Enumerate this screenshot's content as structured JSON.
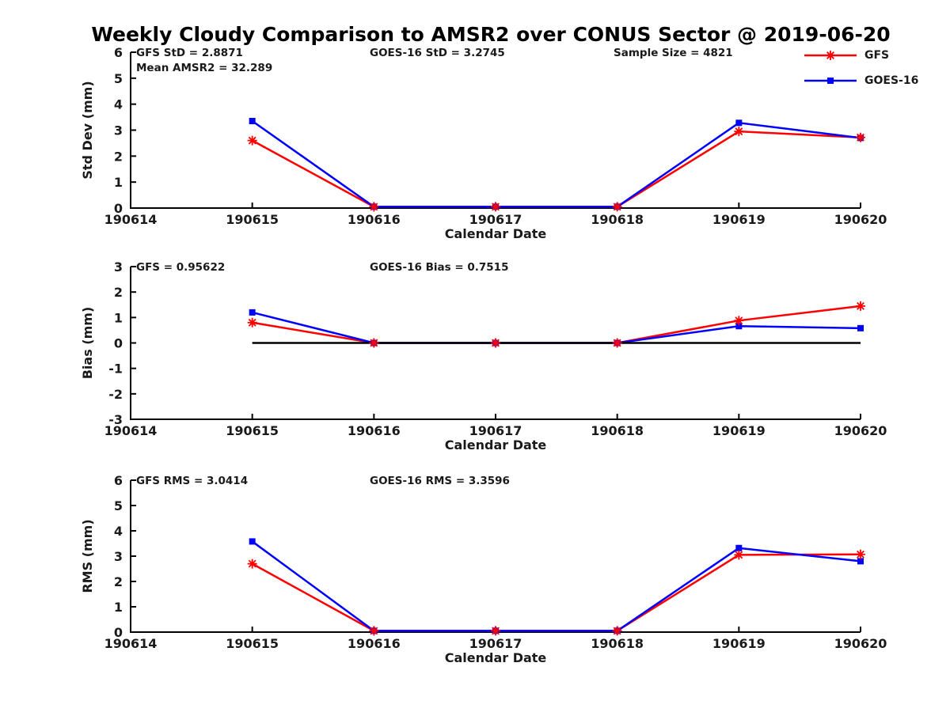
{
  "title": "Weekly Cloudy Comparison to AMSR2 over CONUS Sector @ 2019-06-20",
  "legend": {
    "items": [
      {
        "label": "GFS",
        "color": "#ff0000",
        "marker": "asterisk"
      },
      {
        "label": "GOES-16",
        "color": "#0000ff",
        "marker": "square"
      }
    ]
  },
  "colors": {
    "gfs": "#ff0000",
    "goes16": "#0000ff",
    "axis": "#000000",
    "text": "#1a1a1a",
    "zero_line": "#000000"
  },
  "chart_data": [
    {
      "type": "line",
      "xlabel": "Calendar Date",
      "ylabel": "Std Dev (mm)",
      "ylim": [
        0,
        6
      ],
      "yticks": [
        0,
        1,
        2,
        3,
        4,
        5,
        6
      ],
      "categories": [
        "190614",
        "190615",
        "190616",
        "190617",
        "190618",
        "190619",
        "190620"
      ],
      "x": [
        "190615",
        "190616",
        "190617",
        "190618",
        "190619",
        "190620"
      ],
      "series": [
        {
          "name": "GFS",
          "color": "#ff0000",
          "marker": "asterisk",
          "values": [
            2.6,
            0.05,
            0.05,
            0.05,
            2.95,
            2.72
          ]
        },
        {
          "name": "GOES-16",
          "color": "#0000ff",
          "marker": "square",
          "values": [
            3.35,
            0.05,
            0.05,
            0.05,
            3.28,
            2.7
          ]
        }
      ],
      "zero_line": false,
      "annotations": [
        {
          "text": "GFS StD = 2.8871",
          "col": "left",
          "row": 0
        },
        {
          "text": "Mean AMSR2 = 32.289",
          "col": "left",
          "row": 1
        },
        {
          "text": "GOES-16 StD = 3.2745",
          "col": "center",
          "row": 0
        },
        {
          "text": "Sample Size = 4821",
          "col": "right",
          "row": 0
        }
      ]
    },
    {
      "type": "line",
      "xlabel": "Calendar Date",
      "ylabel": "Bias (mm)",
      "ylim": [
        -3,
        3
      ],
      "yticks": [
        -3,
        -2,
        -1,
        0,
        1,
        2,
        3
      ],
      "categories": [
        "190614",
        "190615",
        "190616",
        "190617",
        "190618",
        "190619",
        "190620"
      ],
      "x": [
        "190615",
        "190616",
        "190617",
        "190618",
        "190619",
        "190620"
      ],
      "series": [
        {
          "name": "GFS",
          "color": "#ff0000",
          "marker": "asterisk",
          "values": [
            0.8,
            0,
            0,
            0,
            0.88,
            1.45
          ]
        },
        {
          "name": "GOES-16",
          "color": "#0000ff",
          "marker": "square",
          "values": [
            1.2,
            0,
            0,
            0,
            0.66,
            0.58
          ]
        }
      ],
      "zero_line": true,
      "annotations": [
        {
          "text": "GFS = 0.95622",
          "col": "left",
          "row": 0
        },
        {
          "text": "GOES-16 Bias  = 0.7515",
          "col": "center",
          "row": 0
        }
      ]
    },
    {
      "type": "line",
      "xlabel": "Calendar Date",
      "ylabel": "RMS (mm)",
      "ylim": [
        0,
        6
      ],
      "yticks": [
        0,
        1,
        2,
        3,
        4,
        5,
        6
      ],
      "categories": [
        "190614",
        "190615",
        "190616",
        "190617",
        "190618",
        "190619",
        "190620"
      ],
      "x": [
        "190615",
        "190616",
        "190617",
        "190618",
        "190619",
        "190620"
      ],
      "series": [
        {
          "name": "GFS",
          "color": "#ff0000",
          "marker": "asterisk",
          "values": [
            2.7,
            0.05,
            0.05,
            0.05,
            3.05,
            3.07
          ]
        },
        {
          "name": "GOES-16",
          "color": "#0000ff",
          "marker": "square",
          "values": [
            3.58,
            0.05,
            0.05,
            0.05,
            3.32,
            2.8
          ]
        }
      ],
      "zero_line": false,
      "annotations": [
        {
          "text": "GFS RMS = 3.0414",
          "col": "left",
          "row": 0
        },
        {
          "text": "GOES-16 RMS = 3.3596",
          "col": "center",
          "row": 0
        }
      ]
    }
  ]
}
